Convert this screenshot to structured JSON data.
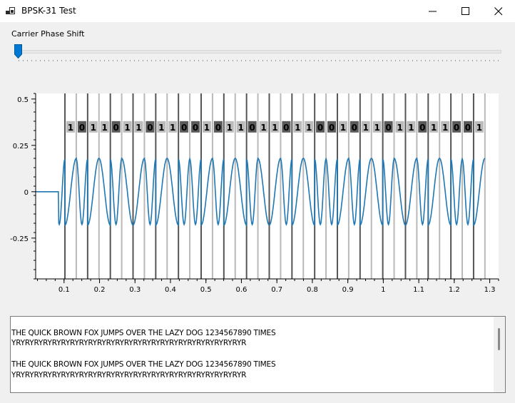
{
  "window": {
    "title": "BPSK-31 Test",
    "icon": "app-icon"
  },
  "controls": {
    "slider_label": "Carrier Phase Shift",
    "slider_value": 0
  },
  "chart_data": {
    "type": "line",
    "title": "",
    "xlabel": "",
    "ylabel": "",
    "xlim": [
      0.02,
      1.325
    ],
    "ylim": [
      -0.47,
      0.53
    ],
    "x_ticks": [
      0.1,
      0.2,
      0.3,
      0.4,
      0.5,
      0.6,
      0.7,
      0.8,
      0.9,
      1.0,
      1.1,
      1.2,
      1.3
    ],
    "x_tick_labels": [
      "0.1",
      "0.2",
      "0.3",
      "0.4",
      "0.5",
      "0.6",
      "0.7",
      "0.8",
      "0.9",
      "1",
      "1.1",
      "1.2",
      "1.3"
    ],
    "y_ticks": [
      0.5,
      0.25,
      0,
      -0.25
    ],
    "y_tick_labels": [
      "0.5",
      "0.25",
      "0",
      "-0.25"
    ],
    "signal_amplitude": 0.18,
    "signal_start": 0.084,
    "bit_period": 0.032,
    "first_bit_x": 0.1025,
    "bits": [
      "0",
      "1",
      "0",
      "1",
      "1",
      "0",
      "1",
      "1",
      "0",
      "1",
      "1",
      "0",
      "0",
      "1",
      "0",
      "1",
      "1",
      "0",
      "1",
      "1",
      "0",
      "1",
      "1",
      "0",
      "0",
      "1",
      "0",
      "1",
      "1",
      "0",
      "1",
      "1",
      "0",
      "1",
      "1",
      "0",
      "0",
      "1"
    ],
    "series": [
      {
        "color": "#1f77b4"
      }
    ],
    "line_colors": {
      "dark": "#555555",
      "light": "#b9b9b9"
    },
    "label_colors": {
      "dark": "#5a5a5a",
      "light": "#bbbbbb"
    }
  },
  "textbox": {
    "lines": [
      "",
      "THE QUICK BROWN FOX JUMPS OVER THE LAZY DOG 1234567890 TIMES",
      "YRYRYRYRYRYRYRYRYRYRYRYRYRYRYRYRYRYRYRYRYRYRYRYRYRYR",
      "",
      "THE QUICK BROWN FOX JUMPS OVER THE LAZY DOG 1234567890 TIMES",
      "YRYRYRYRYRYRYRYRYRYRYRYRYRYRYRYRYRYRYRYRYRYRYRYRYRYR"
    ]
  }
}
